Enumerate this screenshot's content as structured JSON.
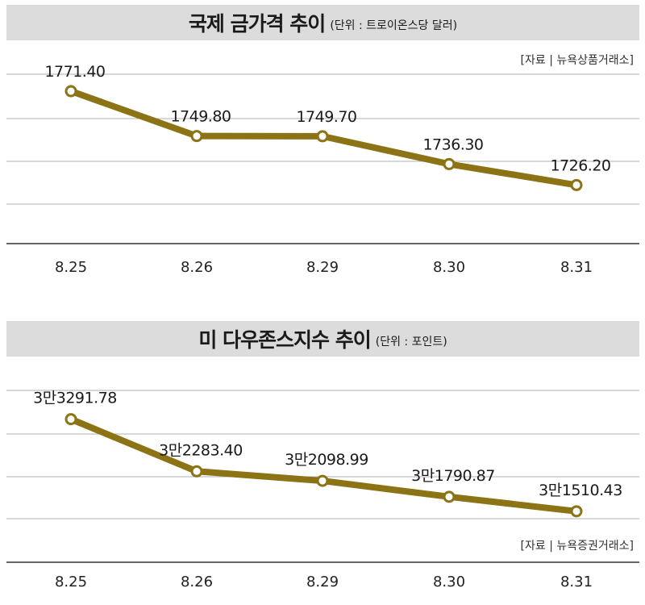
{
  "chart_data": [
    {
      "type": "line",
      "title": "국제 금가격 추이",
      "unit_note": "(단위 : 트로이온스당 달러)",
      "source": "[자료 | 뉴욕상품거래소]",
      "categories": [
        "8.25",
        "8.26",
        "8.29",
        "8.30",
        "8.31"
      ],
      "values": [
        1771.4,
        1749.8,
        1749.7,
        1736.3,
        1726.2
      ],
      "value_labels": [
        "1771.40",
        "1749.80",
        "1749.70",
        "1736.30",
        "1726.20"
      ],
      "ylim": [
        1698,
        1792
      ],
      "grid": true,
      "line_color": "#8b7316"
    },
    {
      "type": "line",
      "title": "미 다우존스지수 추이",
      "unit_note": "(단위 : 포인트)",
      "source": "[자료 | 뉴욕증권거래소]",
      "categories": [
        "8.25",
        "8.26",
        "8.29",
        "8.30",
        "8.31"
      ],
      "values": [
        33291.78,
        32283.4,
        32098.99,
        31790.87,
        31510.43
      ],
      "value_labels": [
        "3만3291.78",
        "3만2283.40",
        "3만2098.99",
        "3만1790.87",
        "3만1510.43"
      ],
      "ylim": [
        30400,
        34300
      ],
      "grid": true,
      "line_color": "#8b7316"
    }
  ]
}
